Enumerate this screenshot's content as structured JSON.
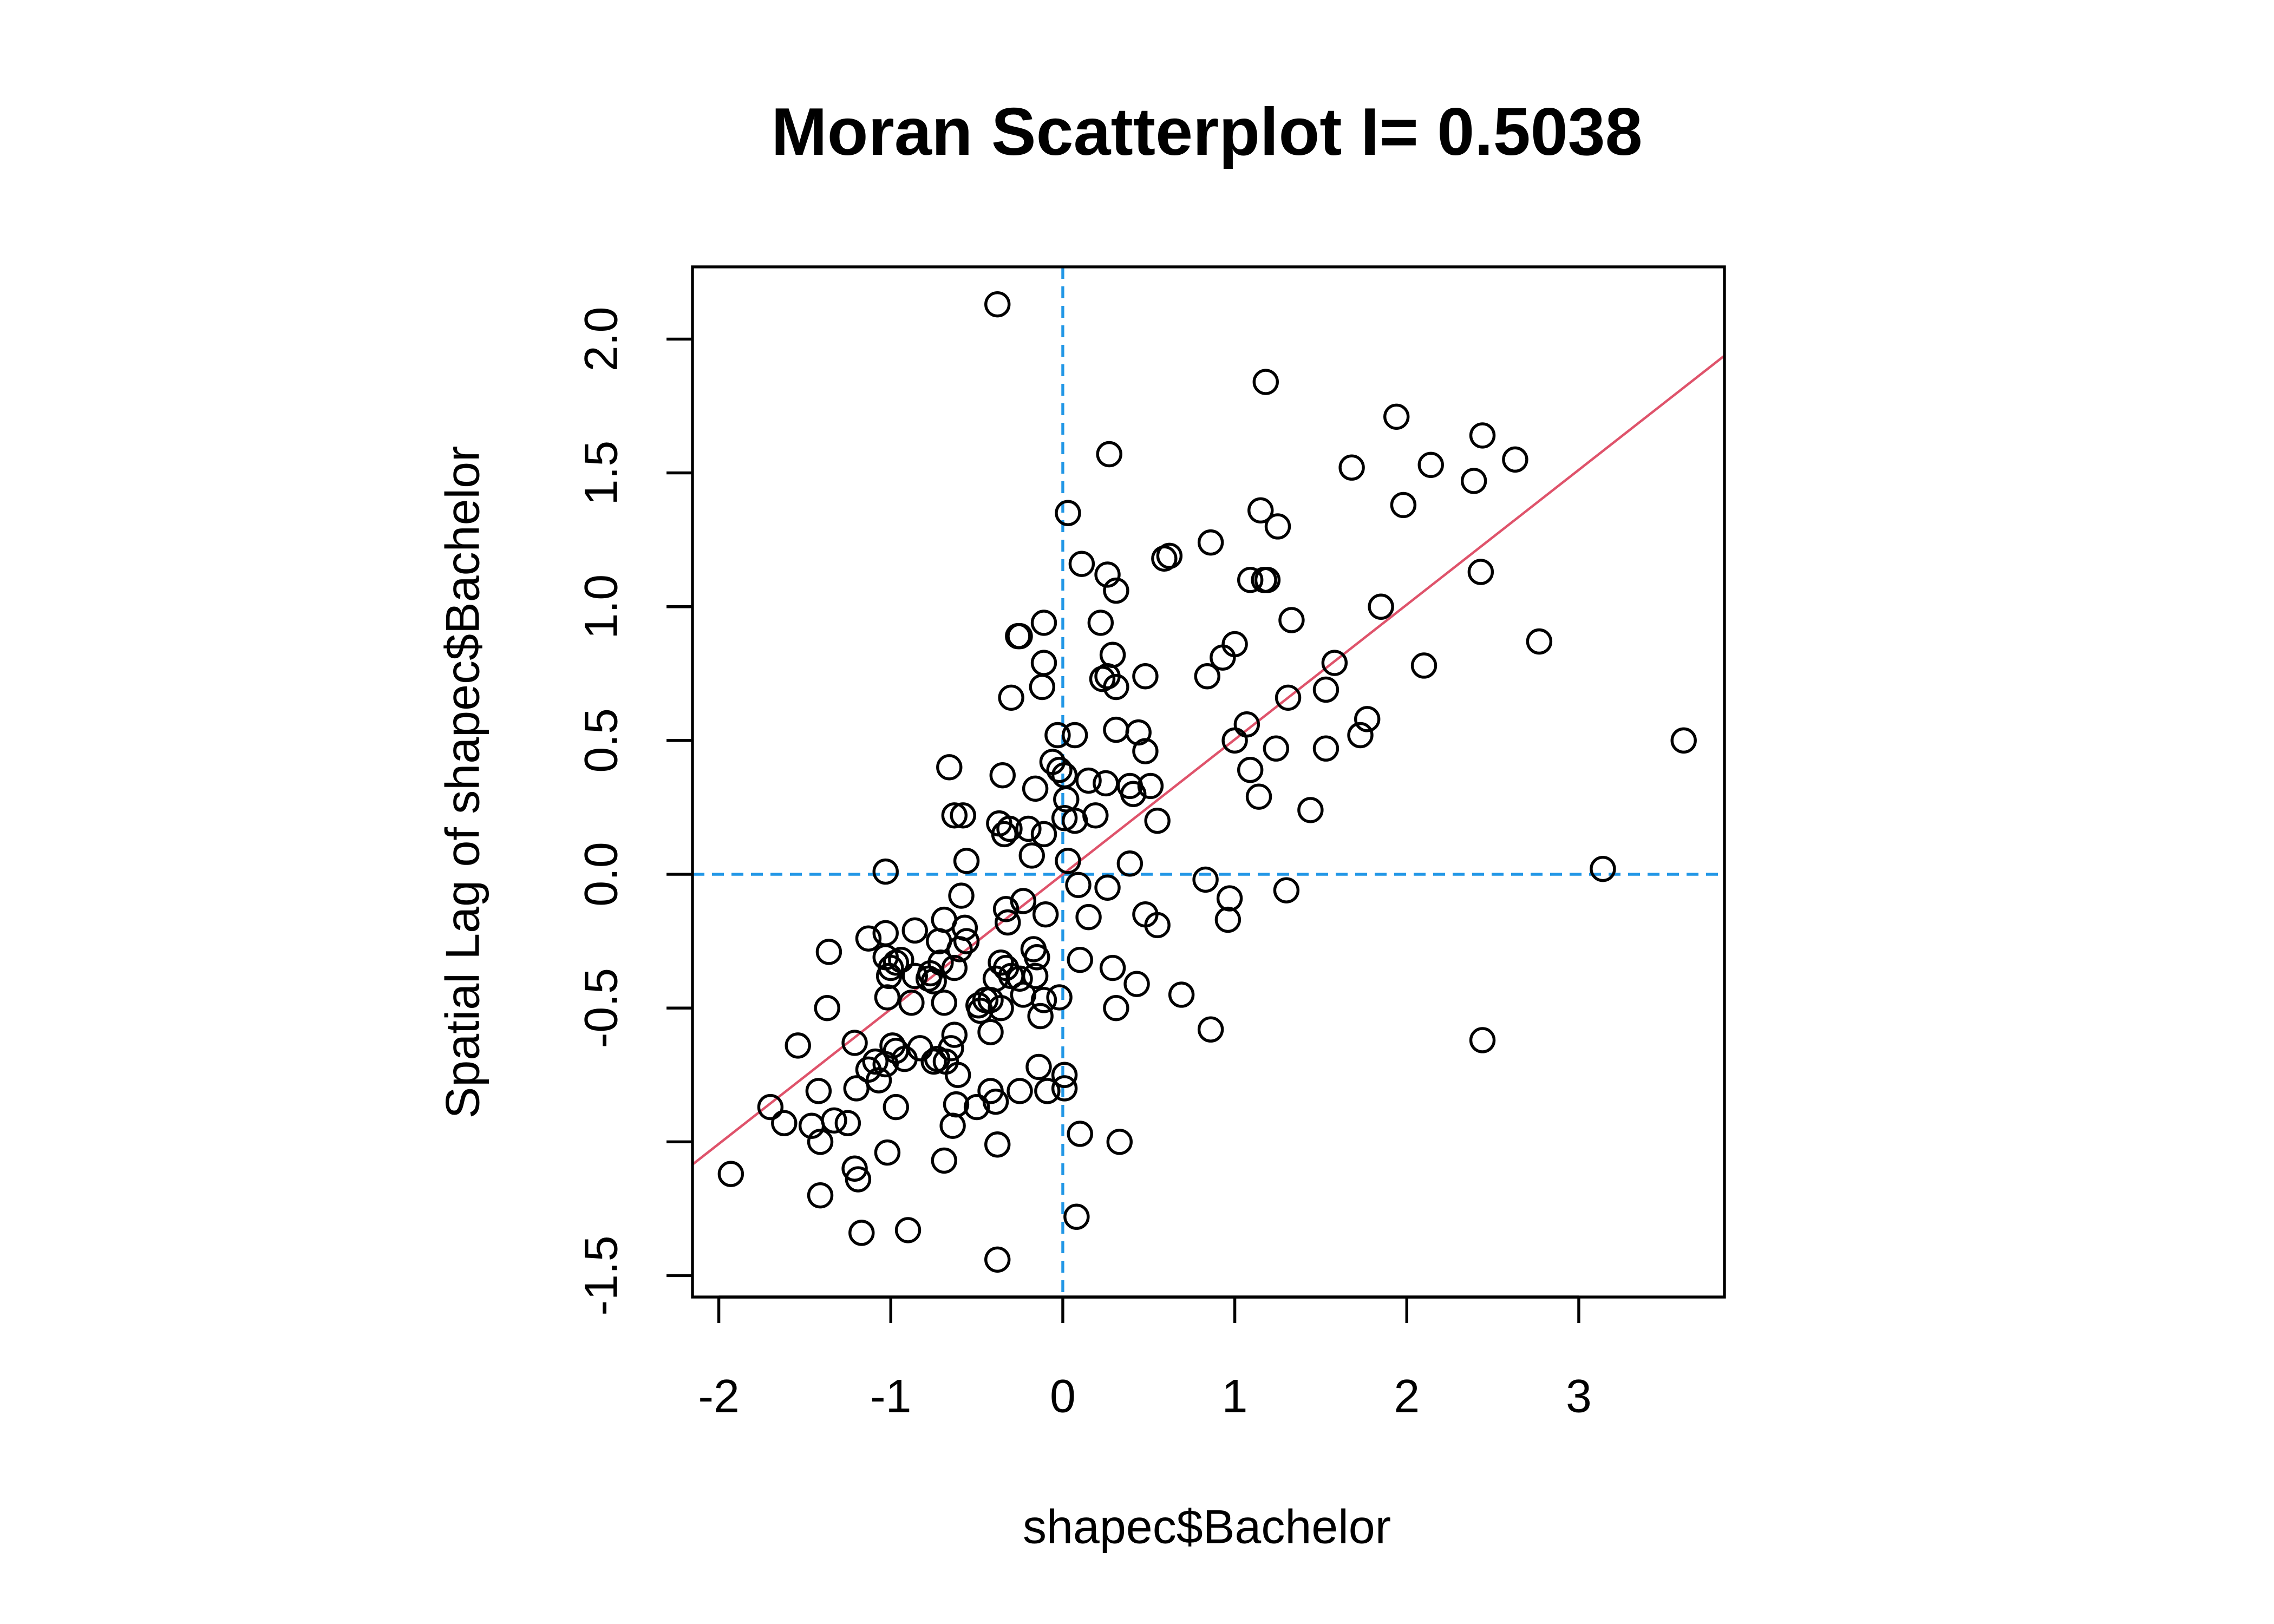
{
  "chart_data": {
    "type": "scatter",
    "title": "Moran Scatterplot I=  0.5038",
    "xlabel": "shapec$Bachelor",
    "ylabel": "Spatial Lag of  shapec$Bachelor",
    "xlim": [
      -2.153,
      3.847
    ],
    "ylim": [
      -1.58,
      2.27
    ],
    "xticks": [
      -2,
      -1,
      0,
      1,
      2,
      3
    ],
    "yticks": [
      {
        "value": -1.5,
        "label": "-1.5"
      },
      {
        "value": -1,
        "label": null
      },
      {
        "value": -0.5,
        "label": "-0.5"
      },
      {
        "value": 0,
        "label": "0.0"
      },
      {
        "value": 0.5,
        "label": "0.5"
      },
      {
        "value": 1,
        "label": "1.0"
      },
      {
        "value": 1.5,
        "label": "1.5"
      },
      {
        "value": 2,
        "label": "2.0"
      }
    ],
    "color": "#000000",
    "ref_color": "#2297e6",
    "hline": 0,
    "vline": 0,
    "fit_color": "#df536b",
    "fit_slope": 0.5038,
    "fit_intercept": 0,
    "x": [
      -0.38,
      1.18,
      3.61,
      3.14,
      2.44,
      2.77,
      2.44,
      2.63,
      2.39,
      2.14,
      1.94,
      1.98,
      1.68,
      2.43,
      1.85,
      2.1,
      1.58,
      1.53,
      1.77,
      1.73,
      1.53,
      1.44,
      1.31,
      1.33,
      1.24,
      1.09,
      1.14,
      1.07,
      1.0,
      1.0,
      0.93,
      0.84,
      0.86,
      1.15,
      1.25,
      1.09,
      1.19,
      1.17,
      1.3,
      0.83,
      0.97,
      0.96,
      0.86,
      0.69,
      0.62,
      0.59,
      0.48,
      0.31,
      0.26,
      0.11,
      0.27,
      0.03,
      0.22,
      0.29,
      0.23,
      0.31,
      0.26,
      0.31,
      0.44,
      0.48,
      0.51,
      0.39,
      0.41,
      0.25,
      0.15,
      0.19,
      0.55,
      0.39,
      0.26,
      0.09,
      0.15,
      0.48,
      0.55,
      0.29,
      0.43,
      0.31,
      0.1,
      -0.02,
      0.1,
      0.33,
      0.08,
      0.01,
      0.01,
      -0.14,
      -0.09,
      -0.25,
      -0.42,
      -0.38,
      -0.38,
      0.07,
      -0.03,
      -0.06,
      -0.02,
      0.01,
      0.02,
      0.01,
      0.07,
      0.03,
      -0.11,
      -0.25,
      -0.26,
      -0.11,
      -0.12,
      -0.3,
      -0.16,
      -0.35,
      -0.66,
      -0.63,
      -0.58,
      -0.37,
      -0.31,
      -0.2,
      -0.11,
      -0.34,
      -0.18,
      -0.56,
      -0.23,
      -0.59,
      -0.1,
      -0.33,
      -0.32,
      -0.57,
      -0.69,
      -0.56,
      -0.6,
      -0.17,
      -0.15,
      -0.36,
      -0.33,
      -0.3,
      -0.16,
      -0.25,
      -0.39,
      -0.42,
      -0.23,
      -0.11,
      -0.13,
      -0.36,
      -0.49,
      -0.45,
      -0.48,
      -0.42,
      -0.63,
      -0.65,
      -0.68,
      -0.61,
      -0.73,
      -0.75,
      -0.83,
      -0.92,
      -1.03,
      -0.97,
      -0.99,
      -1.09,
      -1.13,
      -1.07,
      -1.21,
      -1.2,
      -0.97,
      -0.64,
      -0.5,
      -0.62,
      -0.69,
      -1.02,
      -1.25,
      -1.33,
      -1.46,
      -1.62,
      -1.7,
      -1.41,
      -1.42,
      -1.54,
      -1.37,
      -1.36,
      -1.21,
      -1.19,
      -1.41,
      -1.17,
      -0.9,
      -1.93,
      -1.13,
      -1.03,
      -1.03,
      -1.03,
      -0.97,
      -1.0,
      -1.01,
      -0.94,
      -1.02,
      -0.88,
      -0.86,
      -0.86,
      -0.77,
      -0.78,
      -0.75,
      -0.71,
      -0.72,
      -0.69,
      -0.63,
      -0.39
    ],
    "values": [
      2.13,
      1.84,
      0.5,
      0.02,
      -0.62,
      0.87,
      1.64,
      1.55,
      1.47,
      1.53,
      1.71,
      1.38,
      1.52,
      1.13,
      1.0,
      0.78,
      0.79,
      0.69,
      0.58,
      0.52,
      0.47,
      0.24,
      0.66,
      0.95,
      0.47,
      0.39,
      0.29,
      0.56,
      0.5,
      0.86,
      0.81,
      0.74,
      1.24,
      1.36,
      1.3,
      1.1,
      1.1,
      1.1,
      -0.06,
      -0.02,
      -0.09,
      -0.17,
      -0.58,
      -0.45,
      1.19,
      1.18,
      0.74,
      1.06,
      1.12,
      1.16,
      1.57,
      1.35,
      0.94,
      0.82,
      0.73,
      0.7,
      0.74,
      0.54,
      0.53,
      0.46,
      0.33,
      0.33,
      0.3,
      0.34,
      0.35,
      0.22,
      0.2,
      0.04,
      -0.05,
      -0.04,
      -0.16,
      -0.15,
      -0.19,
      -0.35,
      -0.41,
      -0.5,
      -0.32,
      -0.46,
      -0.97,
      -1.0,
      -1.28,
      -0.75,
      -0.8,
      -0.72,
      -0.81,
      -0.81,
      -0.81,
      -1.01,
      -1.44,
      0.52,
      0.52,
      0.42,
      0.39,
      0.37,
      0.28,
      0.21,
      0.2,
      0.05,
      0.94,
      0.89,
      0.89,
      0.79,
      0.7,
      0.66,
      0.32,
      0.37,
      0.4,
      0.22,
      0.22,
      0.19,
      0.17,
      0.17,
      0.15,
      0.15,
      0.07,
      0.05,
      -0.1,
      -0.08,
      -0.15,
      -0.13,
      -0.18,
      -0.2,
      -0.17,
      -0.25,
      -0.28,
      -0.28,
      -0.31,
      -0.33,
      -0.35,
      -0.38,
      -0.38,
      -0.39,
      -0.39,
      -0.47,
      -0.45,
      -0.47,
      -0.53,
      -0.5,
      -0.49,
      -0.47,
      -0.51,
      -0.59,
      -0.6,
      -0.65,
      -0.7,
      -0.75,
      -0.69,
      -0.7,
      -0.65,
      -0.69,
      -0.71,
      -0.66,
      -0.64,
      -0.7,
      -0.73,
      -0.77,
      -0.63,
      -0.8,
      -0.87,
      -0.94,
      -0.87,
      -0.86,
      -1.07,
      -1.04,
      -0.93,
      -0.92,
      -0.94,
      -0.93,
      -0.87,
      -1.0,
      -0.81,
      -0.64,
      -0.5,
      -0.29,
      -1.1,
      -1.14,
      -1.2,
      -1.34,
      -1.33,
      -1.12,
      -0.24,
      -0.22,
      0.01,
      -0.31,
      -0.33,
      -0.35,
      -0.38,
      -0.32,
      -0.46,
      -0.48,
      -0.21,
      -0.38,
      -0.37,
      -0.39,
      -0.4,
      -0.33,
      -0.25,
      -0.48,
      -0.35,
      -0.85
    ]
  }
}
